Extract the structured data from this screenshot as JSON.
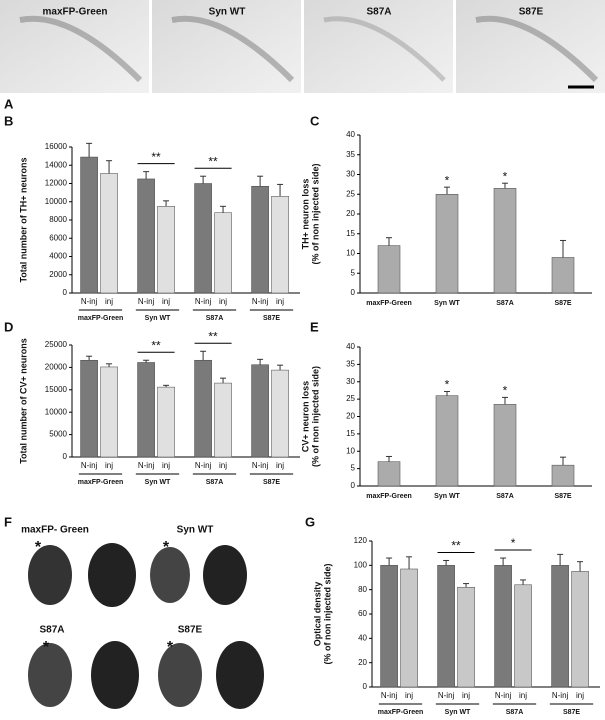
{
  "figure_labels": [
    "A",
    "B",
    "C",
    "D",
    "E",
    "F",
    "G"
  ],
  "panel_a_images": [
    "maxFP-Green",
    "Syn WT",
    "S87A",
    "S87E"
  ],
  "panel_f_images": [
    "maxFP- Green",
    "Syn WT",
    "S87A",
    "S87E"
  ],
  "injected_marker": "*",
  "chart_data": [
    {
      "type": "bar",
      "ylabel": [
        "Total number of TH+ neurons"
      ],
      "categories": [
        "maxFP-Green",
        "Syn WT",
        "S87A",
        "S87E"
      ],
      "series": [
        {
          "name": "N-inj",
          "color": "#7a7a7a",
          "values": [
            14900,
            12500,
            12000,
            11700
          ],
          "errors": [
            1500,
            800,
            800,
            1100
          ]
        },
        {
          "name": "inj",
          "color": "#e0e0e0",
          "values": [
            13100,
            9500,
            8800,
            10600
          ],
          "errors": [
            1400,
            600,
            700,
            1300
          ]
        }
      ],
      "significance": [
        null,
        "**",
        "**",
        null
      ],
      "ylim": [
        0,
        16000
      ],
      "yticks": [
        0,
        2000,
        4000,
        6000,
        8000,
        10000,
        12000,
        14000,
        16000
      ]
    },
    {
      "type": "bar",
      "ylabel": [
        "TH+ neuron loss",
        "(% of non injected side)"
      ],
      "categories": [
        "maxFP-Green",
        "Syn WT",
        "S87A",
        "S87E"
      ],
      "values": [
        12,
        25,
        26.5,
        9
      ],
      "errors": [
        2,
        1.8,
        1.3,
        4.3
      ],
      "color": "#ababab",
      "significance": [
        null,
        "*",
        "*",
        null
      ],
      "ylim": [
        0,
        40
      ],
      "yticks": [
        0,
        5,
        10,
        15,
        20,
        25,
        30,
        35,
        40
      ]
    },
    {
      "type": "bar",
      "ylabel": [
        "Total number of CV+ neurons"
      ],
      "categories": [
        "maxFP-Green",
        "Syn WT",
        "S87A",
        "S87E"
      ],
      "series": [
        {
          "name": "N-inj",
          "color": "#7a7a7a",
          "values": [
            21600,
            21100,
            21600,
            20600
          ],
          "errors": [
            900,
            500,
            2000,
            1200
          ]
        },
        {
          "name": "inj",
          "color": "#e0e0e0",
          "values": [
            20100,
            15600,
            16500,
            19400
          ],
          "errors": [
            700,
            400,
            1100,
            1100
          ]
        }
      ],
      "significance": [
        null,
        "**",
        "**",
        null
      ],
      "ylim": [
        0,
        25000
      ],
      "yticks": [
        0,
        5000,
        10000,
        15000,
        20000,
        25000
      ]
    },
    {
      "type": "bar",
      "ylabel": [
        "CV+ neuron loss",
        "(% of non injected side)"
      ],
      "categories": [
        "maxFP-Green",
        "Syn WT",
        "S87A",
        "S87E"
      ],
      "values": [
        7,
        26,
        23.5,
        6
      ],
      "errors": [
        1.5,
        1.2,
        2,
        2.3
      ],
      "color": "#ababab",
      "significance": [
        null,
        "*",
        "*",
        null
      ],
      "ylim": [
        0,
        40
      ],
      "yticks": [
        0,
        5,
        10,
        15,
        20,
        25,
        30,
        35,
        40
      ]
    },
    {
      "type": "bar",
      "ylabel": [
        "Optical density",
        "(% of non injected side)"
      ],
      "categories": [
        "maxFP-Green",
        "Syn WT",
        "S87A",
        "S87E"
      ],
      "series": [
        {
          "name": "N-inj",
          "color": "#7a7a7a",
          "values": [
            100,
            100,
            100,
            100
          ],
          "errors": [
            6,
            4,
            6,
            9
          ]
        },
        {
          "name": "inj",
          "color": "#c8c8c8",
          "values": [
            97,
            82,
            84,
            95
          ],
          "errors": [
            10,
            3,
            4,
            8
          ]
        }
      ],
      "significance": [
        null,
        "**",
        "*",
        null
      ],
      "ylim": [
        0,
        120
      ],
      "yticks": [
        0,
        20,
        40,
        60,
        80,
        100,
        120
      ]
    }
  ]
}
